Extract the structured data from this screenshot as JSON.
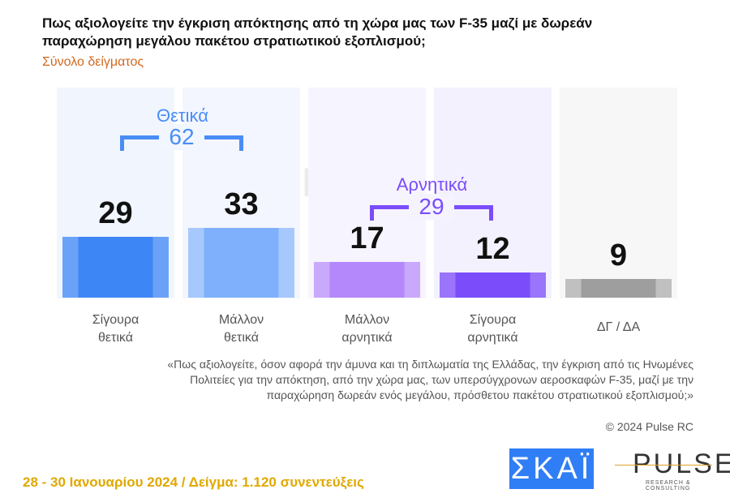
{
  "title": "Πως αξιολογείτε την έγκριση απόκτησης από τη χώρα μας των F-35 μαζί με δωρεάν παραχώρηση μεγάλου πακέτου στρατιωτικού εξοπλισμού;",
  "subtitle": "Σύνολο δείγματος",
  "chart_data": {
    "type": "bar",
    "categories": [
      "Σίγουρα θετικά",
      "Μάλλον θετικά",
      "Μάλλον αρνητικά",
      "Σίγουρα αρνητικά",
      "ΔΓ / ΔΑ"
    ],
    "category_lines": [
      [
        "Σίγουρα",
        "θετικά"
      ],
      [
        "Μάλλον",
        "θετικά"
      ],
      [
        "Μάλλον",
        "αρνητικά"
      ],
      [
        "Σίγουρα",
        "αρνητικά"
      ],
      [
        "ΔΓ / ΔΑ",
        ""
      ]
    ],
    "values": [
      29,
      33,
      17,
      12,
      9
    ],
    "colors": [
      "#3d86f5",
      "#7fb0fb",
      "#b488fa",
      "#7b4dfa",
      "#9e9e9e"
    ],
    "edge_colors": [
      "#6aa2f8",
      "#a6c8fc",
      "#c8a9fb",
      "#9a74fb",
      "#c0c0c0"
    ],
    "bg_colors": [
      "#f1f6fe",
      "#f3f6fe",
      "#f6f4fe",
      "#f3f1fe",
      "#f7f7f8"
    ],
    "ylim": [
      0,
      100
    ],
    "groups": [
      {
        "label": "Θετικά",
        "value": "62",
        "color": "#4a8df5"
      },
      {
        "label": "Αρνητικά",
        "value": "29",
        "color": "#7b4dfa"
      }
    ]
  },
  "note": "«Πως αξιολογείτε, όσον αφορά την άμυνα και τη διπλωματία της Ελλάδας, την έγκριση από τις Ηνωμένες Πολιτείες για την απόκτηση, από την χώρα μας, των υπερσύγχρονων αεροσκαφών F-35, μαζί με την παραχώρηση δωρεάν ενός μεγάλου, πρόσθετου πακέτου στρατιωτικού εξοπλισμού;»",
  "copyright": "© 2024 Pulse RC",
  "footer": "28 - 30 Ιανουαρίου  2024  /  Δείγμα:  1.120 συνεντεύξεις",
  "logos": {
    "skai": "ΣΚΑΪ",
    "pulse": "PULSE",
    "pulse_tag": "RESEARCH & CONSULTING"
  }
}
